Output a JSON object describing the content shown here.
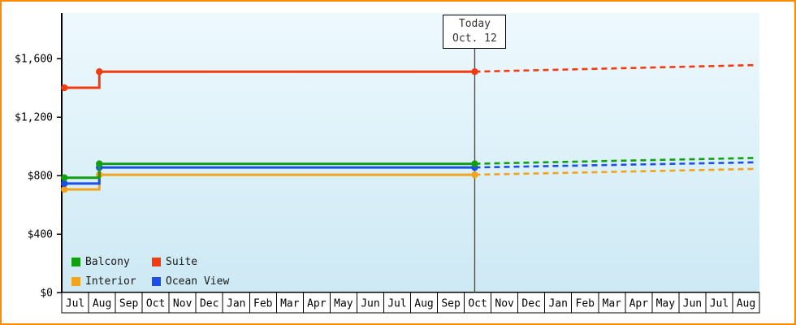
{
  "chart_data": {
    "type": "line",
    "title": "",
    "xlabel": "",
    "ylabel": "",
    "ylim": [
      0,
      1900
    ],
    "yticks": [
      0,
      400,
      800,
      1200,
      1600
    ],
    "ytick_labels": [
      "$0",
      "$400",
      "$800",
      "$1,200",
      "$1,600"
    ],
    "grid": false,
    "x_months": [
      "Jul",
      "Aug",
      "Sep",
      "Oct",
      "Nov",
      "Dec",
      "Jan",
      "Feb",
      "Mar",
      "Apr",
      "May",
      "Jun",
      "Jul",
      "Aug",
      "Sep",
      "Oct",
      "Nov",
      "Dec",
      "Jan",
      "Feb",
      "Mar",
      "Apr",
      "May",
      "Jun",
      "Jul",
      "Aug"
    ],
    "today_marker": {
      "line1": "Today",
      "line2": "Oct. 12",
      "x_month_fraction": 15.39
    },
    "series": [
      {
        "name": "Balcony",
        "color": "#12a012",
        "history": [
          [
            0.1,
            785
          ],
          [
            1.4,
            785
          ],
          [
            1.4,
            880
          ],
          [
            15.39,
            880
          ]
        ],
        "forecast": [
          [
            15.39,
            880
          ],
          [
            25.85,
            920
          ]
        ],
        "markers": [
          [
            0.1,
            785
          ],
          [
            1.4,
            880
          ],
          [
            15.39,
            880
          ]
        ]
      },
      {
        "name": "Suite",
        "color": "#f23b10",
        "history": [
          [
            0.1,
            1400
          ],
          [
            1.4,
            1400
          ],
          [
            1.4,
            1510
          ],
          [
            15.39,
            1510
          ]
        ],
        "forecast": [
          [
            15.39,
            1510
          ],
          [
            25.85,
            1555
          ]
        ],
        "markers": [
          [
            0.1,
            1400
          ],
          [
            1.4,
            1510
          ],
          [
            15.39,
            1510
          ]
        ]
      },
      {
        "name": "Interior",
        "color": "#f2a41d",
        "history": [
          [
            0.1,
            705
          ],
          [
            1.4,
            705
          ],
          [
            1.4,
            805
          ],
          [
            15.39,
            805
          ]
        ],
        "forecast": [
          [
            15.39,
            805
          ],
          [
            25.85,
            845
          ]
        ],
        "markers": [
          [
            0.1,
            705
          ],
          [
            1.4,
            805
          ],
          [
            15.39,
            805
          ]
        ]
      },
      {
        "name": "Ocean View",
        "color": "#1c4fe8",
        "history": [
          [
            0.1,
            745
          ],
          [
            1.4,
            745
          ],
          [
            1.4,
            855
          ],
          [
            15.39,
            855
          ]
        ],
        "forecast": [
          [
            15.39,
            855
          ],
          [
            25.85,
            890
          ]
        ],
        "markers": [
          [
            0.1,
            745
          ],
          [
            1.4,
            855
          ],
          [
            15.39,
            855
          ]
        ]
      }
    ],
    "legend": {
      "position": "bottom-left",
      "rows": [
        [
          "Balcony",
          "Suite"
        ],
        [
          "Interior",
          "Ocean View"
        ]
      ]
    },
    "colors": {
      "frame_border": "#ff8c00",
      "plot_bg_top": "#eef9fe",
      "plot_bg_bottom": "#cde9f4",
      "axis": "#000000",
      "today_line": "#444444",
      "month_cell_bg": "#ffffff"
    }
  }
}
